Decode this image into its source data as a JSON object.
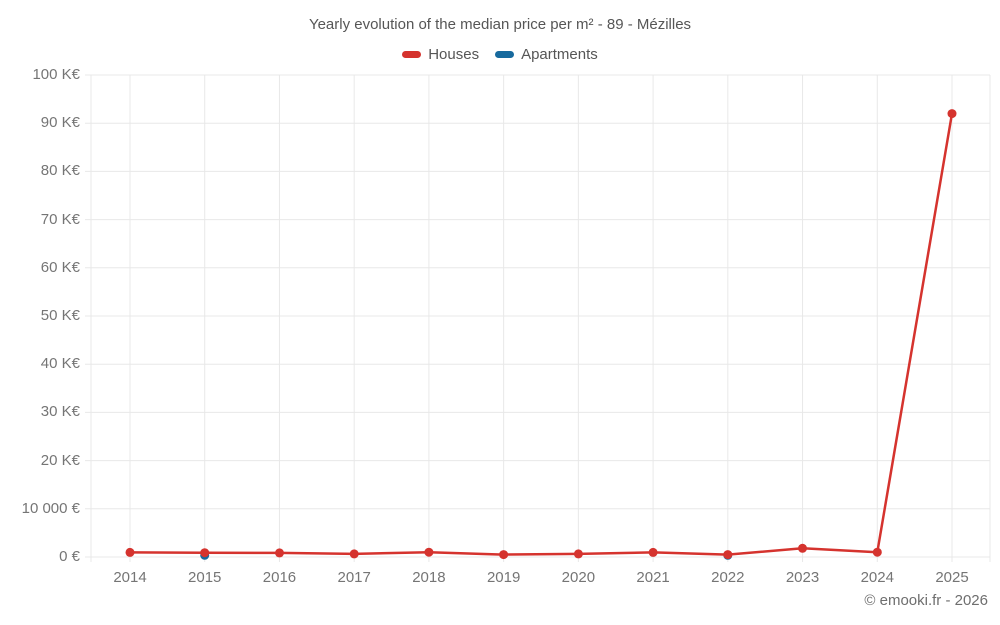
{
  "chart_data": {
    "type": "line",
    "title": "Yearly evolution of the median price per m² - 89 - Mézilles",
    "attribution": "© emooki.fr - 2026",
    "legend_position": "top",
    "grid": true,
    "categories": [
      "2014",
      "2015",
      "2016",
      "2017",
      "2018",
      "2019",
      "2020",
      "2021",
      "2022",
      "2023",
      "2024",
      "2025"
    ],
    "ylim": [
      0,
      100000
    ],
    "y_ticks": [
      {
        "value": 0,
        "label": "0 €"
      },
      {
        "value": 10000,
        "label": "10 000 €"
      },
      {
        "value": 20000,
        "label": "20 K€"
      },
      {
        "value": 30000,
        "label": "30 K€"
      },
      {
        "value": 40000,
        "label": "40 K€"
      },
      {
        "value": 50000,
        "label": "50 K€"
      },
      {
        "value": 60000,
        "label": "60 K€"
      },
      {
        "value": 70000,
        "label": "70 K€"
      },
      {
        "value": 80000,
        "label": "80 K€"
      },
      {
        "value": 90000,
        "label": "90 K€"
      },
      {
        "value": 100000,
        "label": "100 K€"
      }
    ],
    "series": [
      {
        "name": "Apartments",
        "color": "#176a9e",
        "line": false,
        "marker": "circle",
        "values": [
          null,
          350,
          null,
          null,
          null,
          null,
          null,
          null,
          350,
          null,
          null,
          null
        ]
      },
      {
        "name": "Houses",
        "color": "#d5332e",
        "line": true,
        "marker": "circle",
        "values": [
          950,
          900,
          850,
          650,
          1000,
          500,
          650,
          950,
          500,
          1800,
          1000,
          92000
        ]
      }
    ]
  },
  "colors": {
    "houses": "#d5332e",
    "apartments": "#176a9e",
    "gridline": "#e8e8e8",
    "axis_text": "#757575",
    "title_text": "#565656",
    "attribution_text": "#6e6e6e"
  }
}
